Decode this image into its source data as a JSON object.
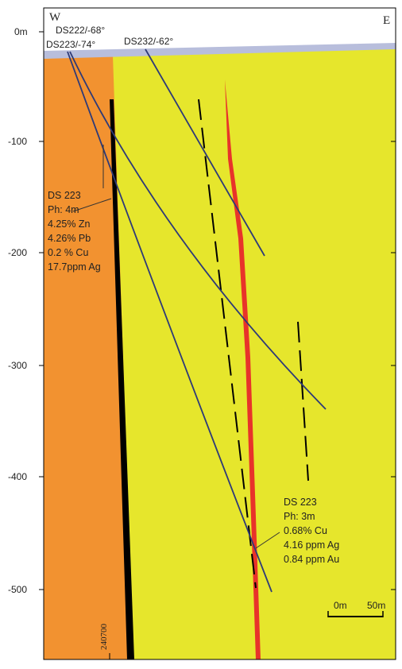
{
  "header": {
    "west": "W",
    "east": "E"
  },
  "depth_labels": [
    "0m",
    "-100",
    "-200",
    "-300",
    "-400",
    "-500"
  ],
  "drillholes": [
    {
      "label": "DS222/-68°"
    },
    {
      "label": "DS223/-74°"
    },
    {
      "label": "DS232/-62°"
    }
  ],
  "annotations": [
    {
      "lines": [
        "DS 223",
        "Ph: 4m",
        "4.25% Zn",
        "4.26% Pb",
        "0.2 % Cu",
        "17.7ppm Ag"
      ]
    },
    {
      "lines": [
        "DS 223",
        "Ph: 3m",
        "0.68% Cu",
        "4.16 ppm Ag",
        "0.84 ppm Au"
      ]
    }
  ],
  "scale": {
    "start": "0m",
    "end": "50m"
  },
  "easting": "240700"
}
